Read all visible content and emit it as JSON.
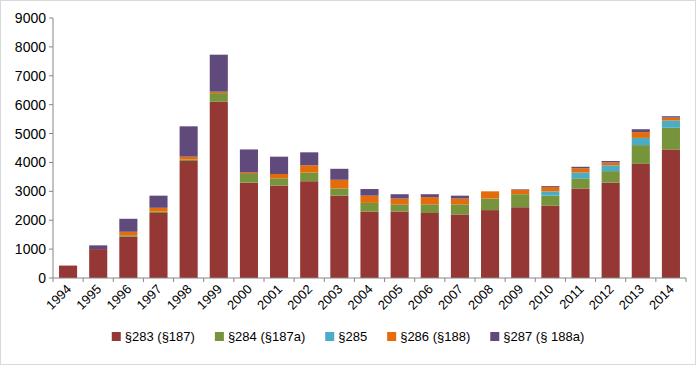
{
  "chart_data": {
    "type": "bar",
    "stacked": true,
    "grid": false,
    "legend": "bottom",
    "categories": [
      "1994",
      "1995",
      "1996",
      "1997",
      "1998",
      "1999",
      "2000",
      "2001",
      "2002",
      "2003",
      "2004",
      "2005",
      "2006",
      "2007",
      "2008",
      "2009",
      "2010",
      "2011",
      "2012",
      "2013",
      "2014"
    ],
    "ylim": [
      0,
      9000
    ],
    "yticks": [
      0,
      1000,
      2000,
      3000,
      4000,
      5000,
      6000,
      7000,
      8000,
      9000
    ],
    "series": [
      {
        "name": "§283 (§187)",
        "color": "#953735",
        "values": [
          430,
          1000,
          1430,
          2250,
          4050,
          6100,
          3300,
          3200,
          3350,
          2850,
          2300,
          2300,
          2250,
          2200,
          2350,
          2450,
          2500,
          3100,
          3300,
          3950,
          4450
        ]
      },
      {
        "name": "§284 (§187a)",
        "color": "#77933C",
        "values": [
          0,
          0,
          50,
          50,
          50,
          300,
          300,
          250,
          300,
          250,
          300,
          250,
          300,
          350,
          400,
          450,
          350,
          350,
          400,
          650,
          750
        ]
      },
      {
        "name": "§285",
        "color": "#4BACC6",
        "values": [
          0,
          0,
          0,
          0,
          0,
          0,
          0,
          0,
          0,
          0,
          0,
          0,
          0,
          0,
          0,
          0,
          150,
          200,
          200,
          250,
          250
        ]
      },
      {
        "name": "§286 (§188)",
        "color": "#E46C0A",
        "values": [
          0,
          0,
          120,
          130,
          100,
          50,
          50,
          150,
          250,
          300,
          250,
          200,
          250,
          200,
          250,
          150,
          150,
          150,
          100,
          200,
          100
        ]
      },
      {
        "name": "§287 (§ 188a)",
        "color": "#604A7B",
        "values": [
          0,
          130,
          450,
          420,
          1050,
          1280,
          800,
          600,
          450,
          380,
          230,
          150,
          100,
          100,
          0,
          20,
          30,
          50,
          50,
          100,
          50
        ]
      }
    ]
  }
}
